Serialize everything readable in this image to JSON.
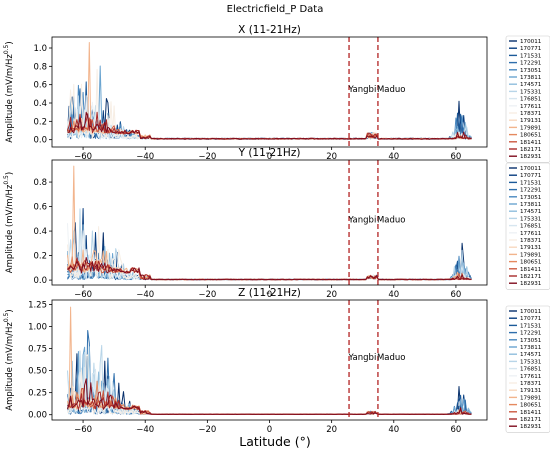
{
  "figure": {
    "suptitle": "Electricfield_P Data",
    "xlabel": "Latitude (°)"
  },
  "chart_data": [
    {
      "type": "line",
      "title": "X (11-21Hz)",
      "xlabel": "Latitude (°)",
      "ylabel": "Amplitude (mV/m/Hz^0.5)",
      "xlim": [
        -70,
        70
      ],
      "ylim": [
        -0.08,
        1.12
      ],
      "xticks": [
        -60,
        -40,
        -20,
        0,
        20,
        40,
        60
      ],
      "yticks": [
        0.0,
        0.2,
        0.4,
        0.6,
        0.8,
        1.0
      ],
      "ytick_labels": [
        "0.0",
        "0.2",
        "0.4",
        "0.6",
        "0.8",
        "1.0"
      ],
      "legend_position": "outside-right",
      "series": [
        {
          "name": "170011",
          "color": "#08306b"
        },
        {
          "name": "170771",
          "color": "#083d7f"
        },
        {
          "name": "171531",
          "color": "#1c5a99"
        },
        {
          "name": "172291",
          "color": "#2f6fac"
        },
        {
          "name": "173051",
          "color": "#4a88bf"
        },
        {
          "name": "173811",
          "color": "#6aa4d0"
        },
        {
          "name": "174571",
          "color": "#8fbddc"
        },
        {
          "name": "175331",
          "color": "#b8d5e8"
        },
        {
          "name": "176851",
          "color": "#d7e6f0"
        },
        {
          "name": "177611",
          "color": "#eef2f5"
        },
        {
          "name": "178371",
          "color": "#f7eee4"
        },
        {
          "name": "179131",
          "color": "#f8d9bf"
        },
        {
          "name": "179891",
          "color": "#f2b48c"
        },
        {
          "name": "180651",
          "color": "#e5895f"
        },
        {
          "name": "181411",
          "color": "#cc5a40"
        },
        {
          "name": "182171",
          "color": "#a92a2a"
        },
        {
          "name": "182931",
          "color": "#7f0c1e"
        }
      ],
      "approx_peaks": {
        "southern_high_latitude": {
          "range": [
            -66,
            -42
          ],
          "max_value": 1.06,
          "max_at": -58
        },
        "northern_high_latitude": {
          "range": [
            58,
            66
          ],
          "max_value": 0.42,
          "max_at": 61
        },
        "mid_latitude_bump": {
          "at": 33,
          "value": 0.1
        },
        "low_latitude_baseline": 0.01
      },
      "markers": [
        {
          "label": "Yangbi",
          "x": 25.6,
          "style": "dashed",
          "color": "#b22222"
        },
        {
          "label": "Maduo",
          "x": 34.9,
          "style": "dashed",
          "color": "#b22222"
        }
      ]
    },
    {
      "type": "line",
      "title": "Y (11-21Hz)",
      "xlabel": "Latitude (°)",
      "ylabel": "Amplitude (mV/m/Hz^0.5)",
      "xlim": [
        -70,
        70
      ],
      "ylim": [
        -0.04,
        0.98
      ],
      "xticks": [
        -60,
        -40,
        -20,
        0,
        20,
        40,
        60
      ],
      "yticks": [
        0.0,
        0.2,
        0.4,
        0.6,
        0.8
      ],
      "ytick_labels": [
        "0.0",
        "0.2",
        "0.4",
        "0.6",
        "0.8"
      ],
      "legend_position": "outside-right",
      "series_names_same_as_X": true,
      "approx_peaks": {
        "southern_high_latitude": {
          "range": [
            -66,
            -42
          ],
          "max_value": 0.93,
          "max_at": -63
        },
        "northern_high_latitude": {
          "range": [
            58,
            66
          ],
          "max_value": 0.3,
          "max_at": 62
        },
        "mid_latitude_bump": {
          "at": 33,
          "value": 0.05
        },
        "low_latitude_baseline": 0.005
      },
      "markers": [
        {
          "label": "Yangbi",
          "x": 25.6
        },
        {
          "label": "Maduo",
          "x": 34.9
        }
      ]
    },
    {
      "type": "line",
      "title": "Z (11-21Hz)",
      "xlabel": "Latitude (°)",
      "ylabel": "Amplitude (mV/m/Hz^0.5)",
      "xlim": [
        -70,
        70
      ],
      "ylim": [
        -0.06,
        1.3
      ],
      "xticks": [
        -60,
        -40,
        -20,
        0,
        20,
        40,
        60
      ],
      "yticks": [
        0.0,
        0.25,
        0.5,
        0.75,
        1.0,
        1.25
      ],
      "ytick_labels": [
        "0.00",
        "0.25",
        "0.50",
        "0.75",
        "1.00",
        "1.25"
      ],
      "legend_position": "outside-right",
      "series_names_same_as_X": true,
      "approx_peaks": {
        "southern_high_latitude": {
          "range": [
            -66,
            -42
          ],
          "max_value": 1.22,
          "max_at": -64
        },
        "northern_high_latitude": {
          "range": [
            58,
            66
          ],
          "max_value": 0.32,
          "max_at": 61
        },
        "mid_latitude_bump": {
          "at": 33,
          "value": 0.05
        },
        "low_latitude_baseline": 0.005
      },
      "markers": [
        {
          "label": "Yangbi",
          "x": 25.6
        },
        {
          "label": "Maduo",
          "x": 34.9
        }
      ]
    }
  ]
}
